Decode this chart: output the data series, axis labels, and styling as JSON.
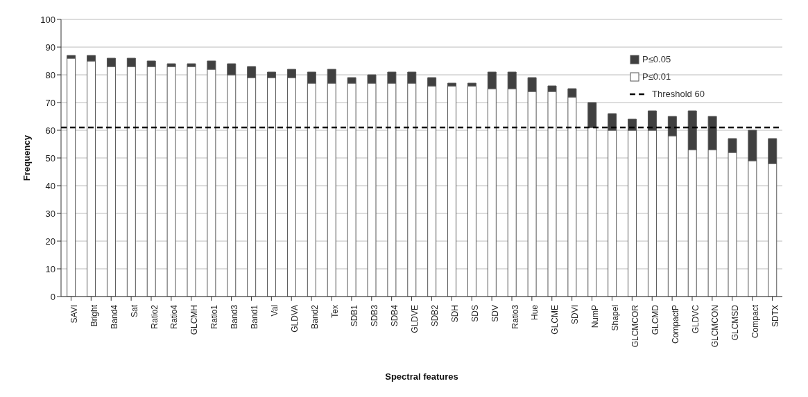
{
  "chart_data": {
    "type": "bar",
    "stacked": true,
    "xlabel": "Spectral features",
    "ylabel": "Frequency",
    "categories": [
      "SAVI",
      "Bright",
      "Band4",
      "Sat",
      "Ratio2",
      "Ratio4",
      "GLCMH",
      "Ratio1",
      "Band3",
      "Band1",
      "Val",
      "GLDVA",
      "Band2",
      "Tex",
      "SDB1",
      "SDB3",
      "SDB4",
      "GLDVE",
      "SDB2",
      "SDH",
      "SDS",
      "SDV",
      "Ratio3",
      "Hue",
      "GLCME",
      "SDVI",
      "NumP",
      "Shapel",
      "GLCMCOR",
      "GLCMD",
      "CompactP",
      "GLDVC",
      "GLCMCON",
      "GLCMSD",
      "Compact",
      "SDTX"
    ],
    "series": [
      {
        "name": "P≤0.01",
        "color": "#ffffff",
        "values": [
          86,
          85,
          83,
          83,
          83,
          83,
          83,
          82,
          80,
          79,
          79,
          79,
          77,
          77,
          77,
          77,
          77,
          77,
          76,
          76,
          76,
          75,
          75,
          74,
          74,
          72,
          61,
          60,
          60,
          60,
          58,
          53,
          53,
          52,
          49,
          48
        ]
      },
      {
        "name": "P≤0.05",
        "color": "#404040",
        "values": [
          1,
          2,
          3,
          3,
          2,
          1,
          1,
          3,
          4,
          4,
          2,
          3,
          4,
          5,
          2,
          3,
          4,
          4,
          3,
          1,
          1,
          6,
          6,
          5,
          2,
          3,
          9,
          6,
          4,
          7,
          7,
          14,
          12,
          5,
          11,
          9
        ]
      }
    ],
    "ylim": [
      0,
      100
    ],
    "yticks": [
      0,
      10,
      20,
      30,
      40,
      50,
      60,
      70,
      80,
      90,
      100
    ],
    "grid": "y",
    "legend": "top right",
    "ref_lines": [
      {
        "axis": "y",
        "value": 61,
        "label": "Threshold 60",
        "line_style": "dashed",
        "color": "#000000"
      }
    ]
  }
}
